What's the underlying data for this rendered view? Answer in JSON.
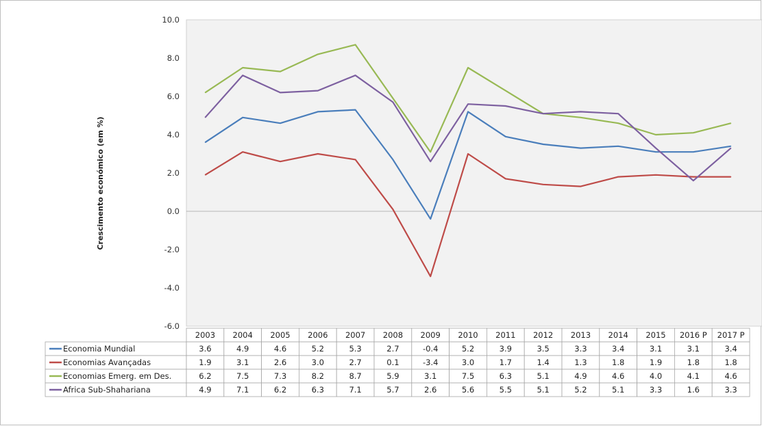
{
  "chart_data": {
    "type": "line",
    "ylabel": "Crescimento económico (em %)",
    "ylim": [
      -6,
      10
    ],
    "ytick_step": 2,
    "grid": false,
    "zero_line": true,
    "y_tick_labels": [
      "10.0",
      "8.0",
      "6.0",
      "4.0",
      "2.0",
      "0.0",
      "-2.0",
      "-4.0",
      "-6.0"
    ],
    "categories": [
      "2003",
      "2004",
      "2005",
      "2006",
      "2007",
      "2008",
      "2009",
      "2010",
      "2011",
      "2012",
      "2013",
      "2014",
      "2015",
      "2016 P",
      "2017 P"
    ],
    "legend": "data-table",
    "series": [
      {
        "name": "Economia Mundial",
        "color": "#4a7ebb",
        "values": [
          3.6,
          4.9,
          4.6,
          5.2,
          5.3,
          2.7,
          -0.4,
          5.2,
          3.9,
          3.5,
          3.3,
          3.4,
          3.1,
          3.1,
          3.4
        ],
        "labels": [
          "3.6",
          "4.9",
          "4.6",
          "5.2",
          "5.3",
          "2.7",
          "-0.4",
          "5.2",
          "3.9",
          "3.5",
          "3.3",
          "3.4",
          "3.1",
          "3.1",
          "3.4"
        ]
      },
      {
        "name": "Economias Avançadas",
        "color": "#be4b48",
        "values": [
          1.9,
          3.1,
          2.6,
          3.0,
          2.7,
          0.1,
          -3.4,
          3.0,
          1.7,
          1.4,
          1.3,
          1.8,
          1.9,
          1.8,
          1.8
        ],
        "labels": [
          "1.9",
          "3.1",
          "2.6",
          "3.0",
          "2.7",
          "0.1",
          "-3.4",
          "3.0",
          "1.7",
          "1.4",
          "1.3",
          "1.8",
          "1.9",
          "1.8",
          "1.8"
        ]
      },
      {
        "name": "Economias Emerg. em Des.",
        "color": "#98b954",
        "values": [
          6.2,
          7.5,
          7.3,
          8.2,
          8.7,
          5.9,
          3.1,
          7.5,
          6.3,
          5.1,
          4.9,
          4.6,
          4.0,
          4.1,
          4.6
        ],
        "labels": [
          "6.2",
          "7.5",
          "7.3",
          "8.2",
          "8.7",
          "5.9",
          "3.1",
          "7.5",
          "6.3",
          "5.1",
          "4.9",
          "4.6",
          "4.0",
          "4.1",
          "4.6"
        ]
      },
      {
        "name": "Africa Sub-Shahariana",
        "color": "#7d60a0",
        "values": [
          4.9,
          7.1,
          6.2,
          6.3,
          7.1,
          5.7,
          2.6,
          5.6,
          5.5,
          5.1,
          5.2,
          5.1,
          3.3,
          1.6,
          3.3
        ],
        "labels": [
          "4.9",
          "7.1",
          "6.2",
          "6.3",
          "7.1",
          "5.7",
          "2.6",
          "5.6",
          "5.5",
          "5.1",
          "5.2",
          "5.1",
          "3.3",
          "1.6",
          "3.3"
        ]
      }
    ]
  }
}
